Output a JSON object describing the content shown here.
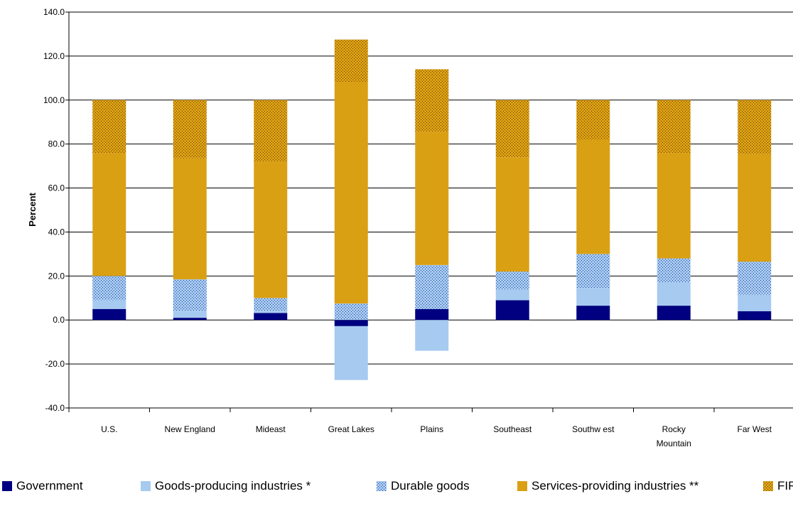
{
  "chart_data": {
    "type": "bar",
    "stacked": true,
    "title": "",
    "xlabel": "",
    "ylabel": "Percent",
    "ylim": [
      -40,
      140
    ],
    "yticks": [
      "-40.0",
      "-20.0",
      "0.0",
      "20.0",
      "40.0",
      "60.0",
      "80.0",
      "100.0",
      "120.0",
      "140.0"
    ],
    "grid": "horizontal",
    "legend_position": "bottom",
    "categories": [
      [
        "U.S."
      ],
      [
        "New  England"
      ],
      [
        "Mideast"
      ],
      [
        "Great Lakes"
      ],
      [
        "Plains"
      ],
      [
        "Southeast"
      ],
      [
        "Southw est"
      ],
      [
        "Rocky",
        "Mountain"
      ],
      [
        "Far West"
      ]
    ],
    "series": [
      {
        "name": "Government",
        "color": "#000080",
        "pattern": "solid",
        "values": [
          5.0,
          1.0,
          3.2,
          -2.8,
          5.0,
          9.0,
          6.5,
          6.5,
          4.0
        ]
      },
      {
        "name": "Goods-producing industries *",
        "color": "#a6caf0",
        "pattern": "solid",
        "values": [
          4.0,
          3.0,
          0.8,
          -24.5,
          -14.0,
          5.0,
          8.0,
          10.5,
          7.5
        ]
      },
      {
        "name": "Durable goods",
        "color": "#a6caf0",
        "pattern": "dots",
        "values": [
          11.0,
          14.5,
          6.0,
          7.5,
          20.0,
          8.0,
          15.5,
          11.0,
          15.0
        ]
      },
      {
        "name": "Services-providing industries **",
        "color": "#daa013",
        "pattern": "solid",
        "values": [
          56.0,
          55.0,
          62.0,
          100.5,
          60.5,
          52.0,
          52.0,
          48.0,
          49.0
        ]
      },
      {
        "name": "FIRE",
        "color": "#daa013",
        "pattern": "dots",
        "values": [
          24.0,
          26.5,
          28.0,
          19.5,
          28.5,
          26.0,
          18.0,
          24.0,
          24.5
        ]
      }
    ],
    "legend_items": [
      "Government",
      "Goods-producing industries *",
      "Durable goods",
      "Services-providing industries **",
      "FIR"
    ]
  }
}
